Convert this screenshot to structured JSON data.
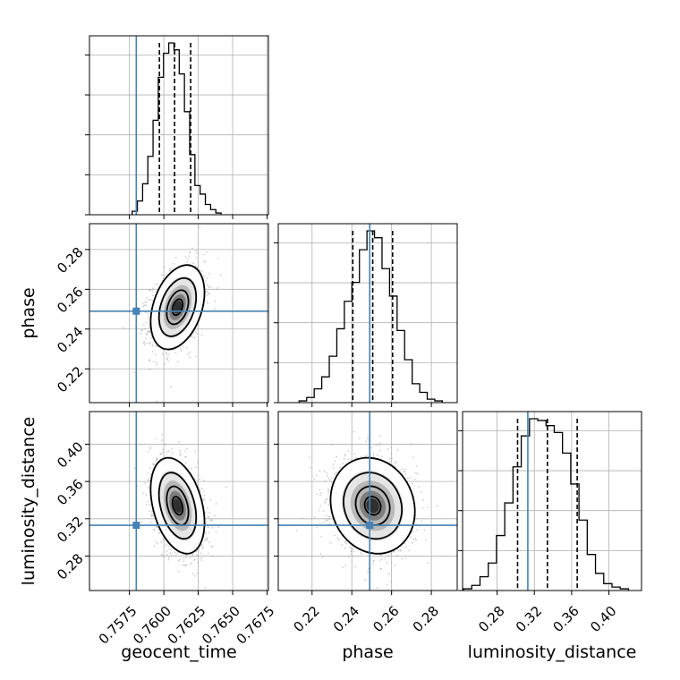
{
  "chart_data": {
    "type": "corner",
    "parameters": [
      "geocent_time",
      "phase",
      "luminosity_distance"
    ],
    "axis_labels": [
      "geocent_time",
      "phase",
      "luminosity_distance"
    ],
    "ranges": {
      "geocent_time": [
        0.7546,
        0.7676
      ],
      "phase": [
        0.203,
        0.293
      ],
      "luminosity_distance": [
        0.243,
        0.435
      ]
    },
    "ticks": {
      "geocent_time": [
        "0.7575",
        "0.7600",
        "0.7625",
        "0.7650",
        "0.7675"
      ],
      "phase": [
        "0.22",
        "0.24",
        "0.26",
        "0.28"
      ],
      "luminosity_distance": [
        "0.28",
        "0.32",
        "0.36",
        "0.40"
      ]
    },
    "tick_values": {
      "geocent_time": [
        0.7575,
        0.76,
        0.7625,
        0.765,
        0.7675
      ],
      "phase": [
        0.22,
        0.24,
        0.26,
        0.28
      ],
      "luminosity_distance": [
        0.28,
        0.32,
        0.36,
        0.4
      ]
    },
    "truths": {
      "geocent_time": 0.758,
      "phase": 0.249,
      "luminosity_distance": 0.313
    },
    "quantiles": {
      "geocent_time": [
        0.75968,
        0.76078,
        0.76195
      ],
      "phase": [
        0.2405,
        0.2505,
        0.2605
      ],
      "luminosity_distance": [
        0.302,
        0.334,
        0.366
      ]
    },
    "histograms": {
      "geocent_time": {
        "edges_from": 0.7577,
        "bin_width": 0.00038,
        "counts": [
          2,
          8,
          18,
          34,
          55,
          80,
          94,
          100,
          96,
          82,
          60,
          35,
          17,
          12,
          6,
          3,
          1
        ]
      },
      "phase": {
        "edges_from": 0.2135,
        "bin_width": 0.00379,
        "counts": [
          1,
          3,
          8,
          15,
          27,
          43,
          59,
          70,
          89,
          100,
          96,
          78,
          62,
          42,
          25,
          11,
          6,
          2,
          1
        ]
      },
      "luminosity_distance": {
        "edges_from": 0.244,
        "bin_width": 0.00885,
        "counts": [
          1,
          3,
          8,
          16,
          32,
          51,
          72,
          90,
          100,
          99,
          96,
          92,
          80,
          62,
          41,
          21,
          10,
          4,
          2,
          1
        ]
      }
    },
    "joint": {
      "phase_vs_geocent_time": {
        "mean": [
          0.761,
          0.251
        ],
        "sd": [
          0.00093,
          0.0101
        ],
        "rho": 0.35
      },
      "luminosity_distance_vs_geocent_time": {
        "mean": [
          0.761,
          0.334
        ],
        "sd": [
          0.00093,
          0.0245
        ],
        "rho": -0.35
      },
      "luminosity_distance_vs_phase": {
        "mean": [
          0.2505,
          0.334
        ],
        "sd": [
          0.0101,
          0.0245
        ],
        "rho": -0.12
      }
    },
    "colors": {
      "truth": "#4682b4",
      "hist": "#000000",
      "grid": "#b0b0b0",
      "scatter": "#9e9e9e"
    },
    "grid": true
  }
}
